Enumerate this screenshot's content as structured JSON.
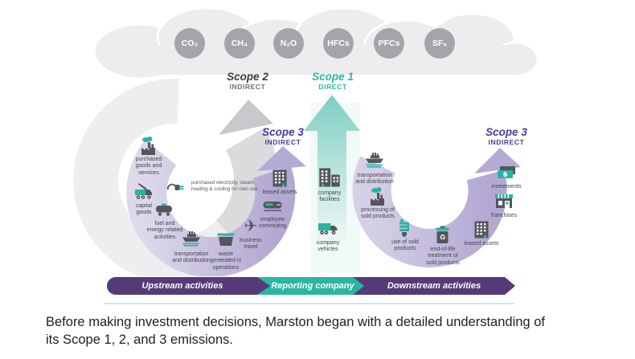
{
  "clouds": {
    "gases": [
      "CO₂",
      "CH₄",
      "N₂O",
      "HFCs",
      "PFCs",
      "SF₆"
    ]
  },
  "scopes": {
    "scope2": {
      "title": "Scope 2",
      "subtitle": "INDIRECT"
    },
    "scope1": {
      "title": "Scope 1",
      "subtitle": "DIRECT"
    },
    "scope3_left": {
      "title": "Scope 3",
      "subtitle": "INDIRECT"
    },
    "scope3_right": {
      "title": "Scope 3",
      "subtitle": "INDIRECT"
    }
  },
  "upstream_items": [
    {
      "id": "purchased-goods",
      "icon": "factory-cloud",
      "label": "purchased\ngoods and\nservices"
    },
    {
      "id": "purchased-electricity",
      "icon": "plug",
      "label": "purchased electricity, steam,\nheating & cooling for own use"
    },
    {
      "id": "capital-goods",
      "icon": "crane-truck",
      "label": "capital\ngoods"
    },
    {
      "id": "fuel-energy",
      "icon": "tank-car",
      "label": "fuel and\nenergy related\nactivities"
    },
    {
      "id": "transportation-upstream",
      "icon": "ship",
      "label": "transportation\nand distribution"
    },
    {
      "id": "waste",
      "icon": "dumpster",
      "label": "waste\ngenerated in\noperations"
    },
    {
      "id": "business-travel",
      "icon": "airplane",
      "label": "business\ntravel"
    },
    {
      "id": "employee-commuting",
      "icon": "train",
      "label": "employee\ncommuting"
    },
    {
      "id": "leased-assets-upstream",
      "icon": "office-building",
      "label": "leased assets"
    }
  ],
  "company_items": [
    {
      "id": "company-facilities",
      "icon": "city-buildings",
      "label": "company\nfacilities"
    },
    {
      "id": "company-vehicles",
      "icon": "delivery-truck",
      "label": "company\nvehicles"
    }
  ],
  "downstream_items": [
    {
      "id": "transportation-downstream",
      "icon": "ship",
      "label": "transportation\nand distribution"
    },
    {
      "id": "processing",
      "icon": "factory-cloud",
      "label": "processing of\nsold products"
    },
    {
      "id": "use-of-sold",
      "icon": "cfl-bulb",
      "label": "use of sold\nproducts"
    },
    {
      "id": "end-of-life",
      "icon": "recycle-bin",
      "label": "end-of-life\ntreatment of\nsold products"
    },
    {
      "id": "leased-assets-downstream",
      "icon": "office-building",
      "label": "leased assets"
    },
    {
      "id": "franchises",
      "icon": "storefront",
      "label": "franchises"
    },
    {
      "id": "investments",
      "icon": "money",
      "label": "investments"
    }
  ],
  "bottom_bar": {
    "upstream": "Upstream activities",
    "reporting": "Reporting company",
    "downstream": "Downstream activities"
  },
  "caption": "Before making investment decisions, Marston began with a detailed understanding of\nits Scope 1, 2, and 3 emissions.",
  "colors": {
    "teal": "#2bb5a3",
    "purple_bar": "#563a78",
    "purple_label": "#4a3a9a",
    "purple_arc": "#b3a8d2",
    "gray_arrow": "#c9c9cd",
    "cloud_gray": "#ededef",
    "gas_circle_gray": "#a4a5a9",
    "icon_dark": "#54565b"
  }
}
